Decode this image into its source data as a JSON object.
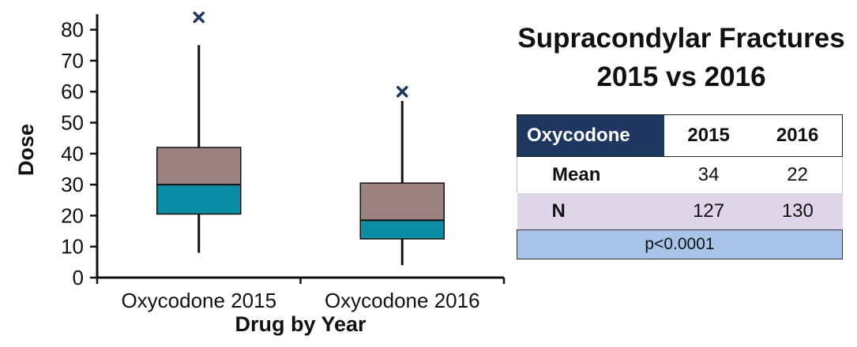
{
  "chart_data": {
    "type": "box",
    "xlabel": "Drug by Year",
    "ylabel": "Dose",
    "ylim": [
      0,
      85
    ],
    "yticks": [
      0,
      10,
      20,
      30,
      40,
      50,
      60,
      70,
      80
    ],
    "categories": [
      "Oxycodone 2015",
      "Oxycodone 2016"
    ],
    "boxes": [
      {
        "category": "Oxycodone 2015",
        "min": 8,
        "q1": 20.5,
        "median": 30,
        "q3": 42,
        "max": 75,
        "outliers": [
          84
        ]
      },
      {
        "category": "Oxycodone 2016",
        "min": 4,
        "q1": 12.5,
        "median": 18.5,
        "q3": 30.5,
        "max": 57,
        "outliers": [
          60
        ]
      }
    ],
    "colors": {
      "upper_box": "#9b8281",
      "lower_box": "#0a8ea6",
      "outlier": "#1d3760"
    }
  },
  "panel": {
    "title_line1": "Supracondylar Fractures",
    "title_line2": "2015 vs 2016",
    "table": {
      "corner": "Oxycodone",
      "years": [
        "2015",
        "2016"
      ],
      "rows": [
        {
          "label": "Mean",
          "values": [
            "34",
            "22"
          ]
        },
        {
          "label": "N",
          "values": [
            "127",
            "130"
          ]
        }
      ],
      "pvalue": "p<0.0001"
    }
  }
}
